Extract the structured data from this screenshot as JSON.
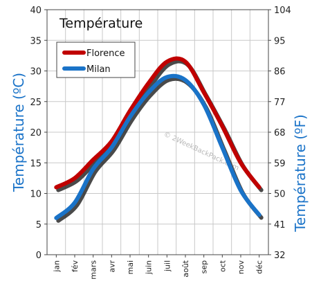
{
  "chart_data": {
    "type": "line",
    "title": "Température",
    "categories": [
      "jan",
      "fév",
      "mars",
      "avr",
      "mai",
      "juin",
      "juil",
      "août",
      "sep",
      "oct",
      "nov",
      "déc"
    ],
    "series": [
      {
        "name": "Florence",
        "color": "#c00000",
        "values": [
          11,
          12.5,
          15.5,
          18.5,
          23.5,
          28,
          31.5,
          31.5,
          26.5,
          21,
          15,
          11
        ]
      },
      {
        "name": "Milan",
        "color": "#1a73c8",
        "values": [
          6,
          8.5,
          14,
          17.5,
          22.5,
          26.5,
          29,
          28.5,
          24.5,
          17.5,
          10.5,
          6.5
        ]
      }
    ],
    "ylabel_left": "Température  (ºC)",
    "ylabel_right": "Température  (ºF)",
    "ylim": [
      0,
      40
    ],
    "yticks_left": [
      "0",
      "5",
      "10",
      "15",
      "20",
      "25",
      "30",
      "35",
      "40"
    ],
    "yticks_right": [
      "32",
      "41",
      "50",
      "59",
      "68",
      "77",
      "86",
      "95",
      "104"
    ],
    "grid": true,
    "legend_position": "top-left",
    "watermark": "© 2WeekBackPack.com"
  }
}
